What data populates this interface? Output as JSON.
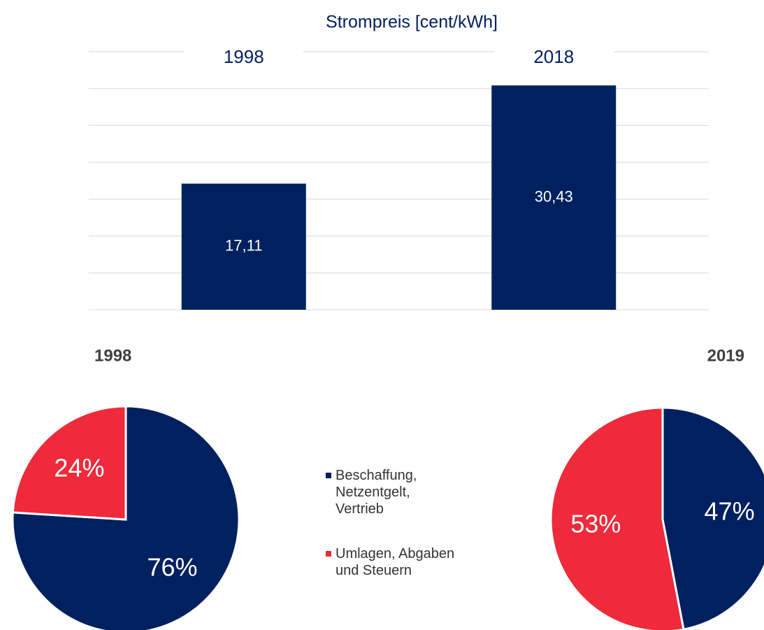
{
  "chart_data": [
    {
      "type": "bar",
      "title": "Strompreis [cent/kWh]",
      "categories": [
        "1998",
        "2018"
      ],
      "values": [
        17.11,
        30.43
      ],
      "value_labels": [
        "17,11",
        "30,43"
      ],
      "color": "#002060",
      "ylim": [
        0,
        35
      ],
      "yticks": [
        0,
        5,
        10,
        15,
        20,
        25,
        30,
        35
      ],
      "grid": true
    },
    {
      "type": "pie",
      "title": "1998",
      "categories": [
        "Beschaffung,\nNetzentgelt,\nVertrieb",
        "Umlagen, Abgaben\nund Steuern"
      ],
      "colors": [
        "#002060",
        "#ee2a3b"
      ],
      "values": [
        76,
        24
      ],
      "value_labels": [
        "76%",
        "24%"
      ]
    },
    {
      "type": "pie",
      "title": "2019",
      "values": [
        47,
        53
      ],
      "value_labels": [
        "47%",
        "53%"
      ]
    }
  ]
}
